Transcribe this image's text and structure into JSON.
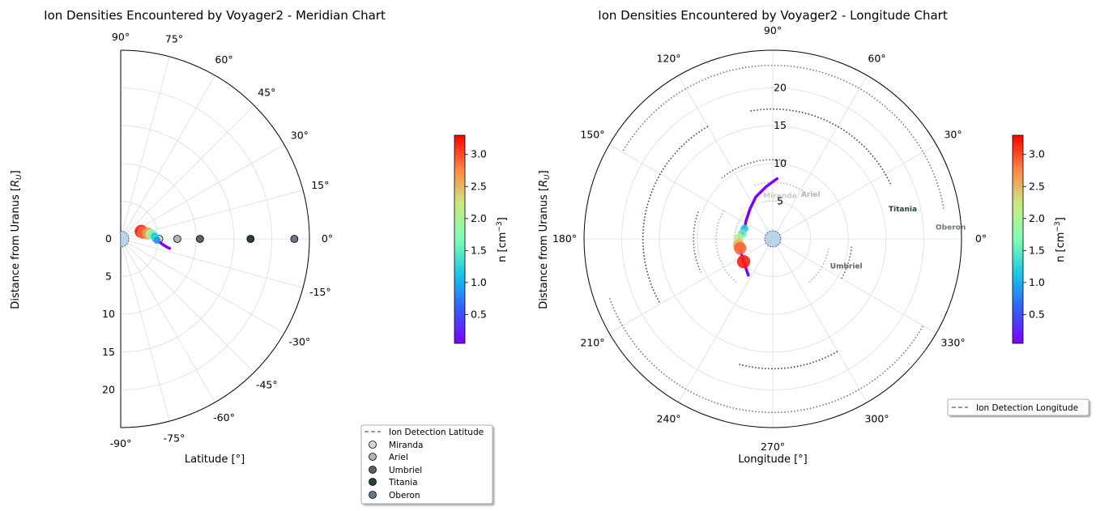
{
  "chart_data": [
    {
      "type": "scatter",
      "projection": "polar-meridian",
      "title": "Ion Densities Encountered by Voyager2 - Meridian Chart",
      "xlabel": "Latitude [°]",
      "ylabel_prefix": "Distance from Uranus [",
      "ylabel_symbol": "R",
      "ylabel_sub": "U",
      "ylabel_suffix": "]",
      "theta_range": [
        -90,
        90
      ],
      "r_range": [
        0,
        25
      ],
      "grid": true,
      "angle_ticks": [
        {
          "deg": 90,
          "label": "90°"
        },
        {
          "deg": 75,
          "label": "75°"
        },
        {
          "deg": 60,
          "label": "60°"
        },
        {
          "deg": 45,
          "label": "45°"
        },
        {
          "deg": 30,
          "label": "30°"
        },
        {
          "deg": 15,
          "label": "15°"
        },
        {
          "deg": 0,
          "label": "0°"
        },
        {
          "deg": -15,
          "label": "-15°"
        },
        {
          "deg": -30,
          "label": "-30°"
        },
        {
          "deg": -45,
          "label": "-45°"
        },
        {
          "deg": -60,
          "label": "-60°"
        },
        {
          "deg": -75,
          "label": "-75°"
        },
        {
          "deg": -90,
          "label": "-90°"
        }
      ],
      "radial_ticks": [
        {
          "r": 0,
          "label": "0"
        },
        {
          "r": 5,
          "label": "5"
        },
        {
          "r": 10,
          "label": "10"
        },
        {
          "r": 15,
          "label": "15"
        },
        {
          "r": 20,
          "label": "20"
        }
      ],
      "colorbar": {
        "label_prefix": "n [cm",
        "label_sup": "−3",
        "label_suffix": "]",
        "min": 0.05,
        "max": 3.3,
        "ticks": [
          "0.5",
          "1.0",
          "1.5",
          "2.0",
          "2.5",
          "3.0"
        ],
        "tick_values": [
          0.5,
          1.0,
          1.5,
          2.0,
          2.5,
          3.0
        ],
        "colormap": "rainbow"
      },
      "trajectory": [
        {
          "r": 2.35,
          "lat": 27,
          "n": 0.12
        },
        {
          "r": 2.6,
          "lat": 23,
          "n": 0.5
        },
        {
          "r": 2.9,
          "lat": 20,
          "n": 3.2
        },
        {
          "r": 3.1,
          "lat": 16,
          "n": 2.9
        },
        {
          "r": 3.45,
          "lat": 13,
          "n": 1.2
        },
        {
          "r": 3.7,
          "lat": 11,
          "n": 2.7
        },
        {
          "r": 4.0,
          "lat": 9,
          "n": 2.1
        },
        {
          "r": 4.3,
          "lat": 7,
          "n": 1.6
        },
        {
          "r": 4.5,
          "lat": 4,
          "n": 1.0
        },
        {
          "r": 4.6,
          "lat": 1,
          "n": 1.3
        },
        {
          "r": 4.8,
          "lat": -2,
          "n": 0.9
        },
        {
          "r": 5.2,
          "lat": -5,
          "n": 0.4
        },
        {
          "r": 5.7,
          "lat": -8,
          "n": 0.2
        },
        {
          "r": 6.2,
          "lat": -10,
          "n": 0.1
        },
        {
          "r": 6.6,
          "lat": -11,
          "n": 0.08
        }
      ],
      "moons": [
        {
          "name": "Miranda",
          "r": 5.1,
          "color": "#d9d9d9"
        },
        {
          "name": "Ariel",
          "r": 7.5,
          "color": "#b3b3b3"
        },
        {
          "name": "Umbriel",
          "r": 10.5,
          "color": "#5f5f5f"
        },
        {
          "name": "Titania",
          "r": 17.2,
          "color": "#2c3e3a"
        },
        {
          "name": "Oberon",
          "r": 23.0,
          "color": "#6b7683"
        }
      ],
      "legend": {
        "placement": "lower-right",
        "entries": [
          "Ion Detection Latitude",
          "Miranda",
          "Ariel",
          "Umbriel",
          "Titania",
          "Oberon"
        ]
      }
    },
    {
      "type": "scatter",
      "projection": "polar-full",
      "title": "Ion Densities Encountered by Voyager2 - Longitude Chart",
      "xlabel": "Longitude [°]",
      "ylabel_prefix": "Distance from Uranus [",
      "ylabel_symbol": "R",
      "ylabel_sub": "U",
      "ylabel_suffix": "]",
      "r_range": [
        0,
        25
      ],
      "grid": true,
      "angle_ticks": [
        {
          "deg": 0,
          "label": "0°"
        },
        {
          "deg": 30,
          "label": "30°"
        },
        {
          "deg": 60,
          "label": "60°"
        },
        {
          "deg": 90,
          "label": "90°"
        },
        {
          "deg": 120,
          "label": "120°"
        },
        {
          "deg": 150,
          "label": "150°"
        },
        {
          "deg": 180,
          "label": "180°"
        },
        {
          "deg": 210,
          "label": "210°"
        },
        {
          "deg": 240,
          "label": "240°"
        },
        {
          "deg": 270,
          "label": "270°"
        },
        {
          "deg": 300,
          "label": "300°"
        },
        {
          "deg": 330,
          "label": "330°"
        }
      ],
      "radial_ticks": [
        {
          "r": 5,
          "label": "5"
        },
        {
          "r": 10,
          "label": "10"
        },
        {
          "r": 15,
          "label": "15"
        },
        {
          "r": 20,
          "label": "20"
        }
      ],
      "colorbar": {
        "label_prefix": "n [cm",
        "label_sup": "−3",
        "label_suffix": "]",
        "min": 0.05,
        "max": 3.3,
        "ticks": [
          "0.5",
          "1.0",
          "1.5",
          "2.0",
          "2.5",
          "3.0"
        ],
        "tick_values": [
          0.5,
          1.0,
          1.5,
          2.0,
          2.5,
          3.0
        ],
        "colormap": "rainbow"
      },
      "trajectory": [
        {
          "r": 8.0,
          "lon": 86,
          "n": 0.1
        },
        {
          "r": 7.0,
          "lon": 97,
          "n": 0.15
        },
        {
          "r": 6.0,
          "lon": 112,
          "n": 0.2
        },
        {
          "r": 5.0,
          "lon": 127,
          "n": 0.35
        },
        {
          "r": 4.3,
          "lon": 145,
          "n": 0.6
        },
        {
          "r": 4.0,
          "lon": 160,
          "n": 1.2
        },
        {
          "r": 4.1,
          "lon": 170,
          "n": 1.5
        },
        {
          "r": 4.5,
          "lon": 180,
          "n": 2.1
        },
        {
          "r": 4.6,
          "lon": 190,
          "n": 2.5
        },
        {
          "r": 4.5,
          "lon": 196,
          "n": 2.9
        },
        {
          "r": 4.6,
          "lon": 205,
          "n": 0.5
        },
        {
          "r": 4.9,
          "lon": 218,
          "n": 3.2
        },
        {
          "r": 5.8,
          "lon": 236,
          "n": 0.1
        }
      ],
      "moon_orbits": [
        {
          "name": "Miranda",
          "r": 5.1,
          "color": "#c9c9c9",
          "arcs": [
            [
              75,
              105
            ],
            [
              150,
              215
            ]
          ]
        },
        {
          "name": "Ariel",
          "r": 7.5,
          "color": "#b3b3b3",
          "arcs": [
            [
              55,
              110
            ],
            [
              150,
              230
            ],
            [
              310,
              350
            ]
          ]
        },
        {
          "name": "Umbriel",
          "r": 10.5,
          "color": "#5f5f5f",
          "arcs": [
            [
              80,
              130
            ],
            [
              160,
              205
            ],
            [
              330,
              355
            ]
          ]
        },
        {
          "name": "Titania",
          "r": 17.2,
          "color": "#22433d",
          "arcs": [
            [
              25,
              100
            ],
            [
              120,
              210
            ],
            [
              255,
              300
            ]
          ]
        },
        {
          "name": "Oberon",
          "r": 23.0,
          "color": "#6b7683",
          "arcs": [
            [
              10,
              150
            ],
            [
              200,
              330
            ]
          ]
        }
      ],
      "moon_labels": [
        {
          "name": "Miranda",
          "lon": 80,
          "r": 5.5,
          "color": "#c9c9c9"
        },
        {
          "name": "Ariel",
          "lon": 48,
          "r": 7.5,
          "color": "#b3b3b3"
        },
        {
          "name": "Umbriel",
          "lon": -22,
          "r": 10.5,
          "color": "#5f5f5f"
        },
        {
          "name": "Titania",
          "lon": 12,
          "r": 17.6,
          "color": "#22433d"
        },
        {
          "name": "Oberon",
          "lon": 3,
          "r": 23.6,
          "color": "#6b7683"
        }
      ],
      "legend": {
        "placement": "lower-right",
        "entries": [
          "Ion Detection Longitude"
        ]
      }
    }
  ]
}
